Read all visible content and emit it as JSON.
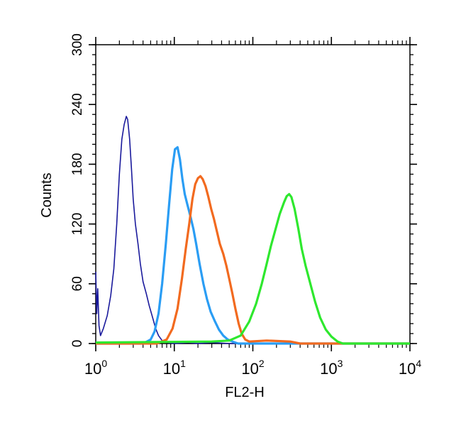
{
  "chart_data": {
    "type": "line",
    "title": "",
    "xlabel": "FL2-H",
    "ylabel": "Counts",
    "x_scale": "log",
    "xlim": [
      1,
      10000
    ],
    "ylim": [
      0,
      300
    ],
    "x_ticks": [
      {
        "value": 1,
        "base": "10",
        "exp": "0"
      },
      {
        "value": 10,
        "base": "10",
        "exp": "1"
      },
      {
        "value": 100,
        "base": "10",
        "exp": "2"
      },
      {
        "value": 1000,
        "base": "10",
        "exp": "3"
      },
      {
        "value": 10000,
        "base": "10",
        "exp": "4"
      }
    ],
    "y_ticks": [
      0,
      60,
      120,
      180,
      240,
      300
    ],
    "grid": false,
    "legend": "none",
    "series": [
      {
        "color": "#1a1a9c",
        "stroke": 1.6,
        "x": [
          1.0,
          1.03,
          1.06,
          1.1,
          1.15,
          1.25,
          1.4,
          1.55,
          1.7,
          1.85,
          2.0,
          2.15,
          2.3,
          2.45,
          2.55,
          2.7,
          2.85,
          3.0,
          3.2,
          3.45,
          3.7,
          4.0,
          4.4,
          4.8,
          5.3,
          5.8,
          6.3,
          7.0,
          8.0,
          10.0,
          15.0,
          20.0,
          30.0,
          50.0,
          10000.0
        ],
        "y": [
          72,
          30,
          55,
          18,
          8,
          15,
          28,
          48,
          75,
          120,
          170,
          205,
          220,
          228,
          225,
          205,
          175,
          145,
          120,
          100,
          80,
          62,
          50,
          38,
          26,
          15,
          8,
          3,
          1,
          0,
          1,
          0,
          1,
          0,
          0
        ]
      },
      {
        "color": "#2a9df4",
        "stroke": 3.2,
        "x": [
          1.0,
          4.0,
          5.0,
          5.6,
          6.3,
          7.0,
          7.8,
          8.6,
          9.4,
          10.2,
          11.0,
          11.8,
          12.7,
          13.6,
          14.6,
          16.0,
          17.5,
          19.0,
          21.0,
          23.5,
          26.0,
          29.0,
          33.0,
          37.0,
          42.0,
          48.0,
          55.0,
          65.0,
          80.0,
          10000.0
        ],
        "y": [
          0,
          0,
          4,
          12,
          30,
          60,
          100,
          140,
          175,
          195,
          197,
          185,
          165,
          150,
          140,
          128,
          115,
          100,
          80,
          60,
          45,
          32,
          22,
          14,
          8,
          4,
          2,
          0,
          0,
          0
        ]
      },
      {
        "color": "#f26a1f",
        "stroke": 3.2,
        "x": [
          1.0,
          6.0,
          8.0,
          9.5,
          11.0,
          12.5,
          14.0,
          15.5,
          17.0,
          18.5,
          20.0,
          21.5,
          23.0,
          25.0,
          27.0,
          29.5,
          32.0,
          35.0,
          38.0,
          42.0,
          46.0,
          50.0,
          55.0,
          60.0,
          66.0,
          72.0,
          80.0,
          90.0,
          150.0,
          300.0,
          400.0,
          10000.0
        ],
        "y": [
          0,
          0,
          4,
          15,
          35,
          65,
          95,
          120,
          145,
          160,
          166,
          168,
          165,
          158,
          148,
          135,
          125,
          112,
          100,
          90,
          78,
          65,
          50,
          35,
          20,
          10,
          4,
          2,
          3,
          2,
          0,
          0
        ]
      },
      {
        "color": "#2ee82e",
        "stroke": 3.2,
        "x": [
          1.0,
          30.0,
          50.0,
          70.0,
          90.0,
          110.0,
          130.0,
          150.0,
          170.0,
          195.0,
          220.0,
          250.0,
          270.0,
          290.0,
          310.0,
          340.0,
          380.0,
          420.0,
          470.0,
          540.0,
          620.0,
          720.0,
          850.0,
          1000.0,
          1200.0,
          1400.0,
          10000.0
        ],
        "y": [
          1,
          2,
          3,
          8,
          22,
          40,
          60,
          80,
          98,
          115,
          130,
          142,
          148,
          150,
          147,
          135,
          115,
          95,
          78,
          60,
          42,
          26,
          14,
          7,
          2,
          0,
          0
        ]
      }
    ]
  }
}
